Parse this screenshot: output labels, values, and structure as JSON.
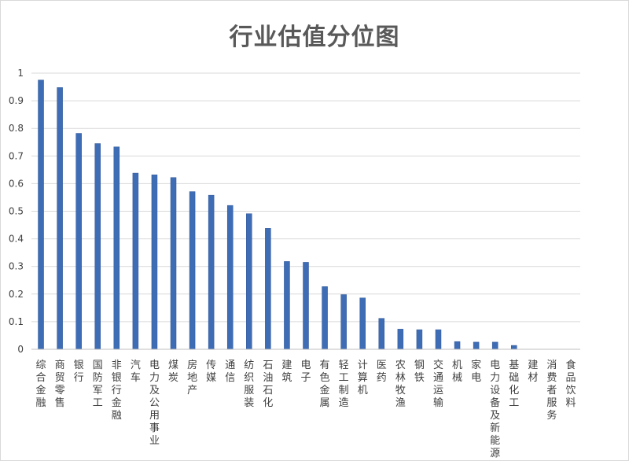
{
  "chart_data": {
    "type": "bar",
    "title": "行业估值分位图",
    "xlabel": "",
    "ylabel": "",
    "ylim": [
      0,
      1
    ],
    "yticks": [
      "0",
      "0.1",
      "0.2",
      "0.3",
      "0.4",
      "0.5",
      "0.6",
      "0.7",
      "0.8",
      "0.9",
      "1"
    ],
    "grid": true,
    "legend": "none",
    "bar_color": "#3e6db5",
    "categories": [
      "综合金融",
      "商贸零售",
      "银行",
      "国防军工",
      "非银行金融",
      "汽车",
      "电力及公用事业",
      "煤炭",
      "房地产",
      "传媒",
      "通信",
      "纺织服装",
      "石油石化",
      "建筑",
      "电子",
      "有色金属",
      "轻工制造",
      "计算机",
      "医药",
      "农林牧渔",
      "钢铁",
      "交通运输",
      "机械",
      "家电",
      "电力设备及新能源",
      "基础化工",
      "建材",
      "消费者服务",
      "食品饮料"
    ],
    "values": [
      0.975,
      0.948,
      0.782,
      0.745,
      0.733,
      0.638,
      0.632,
      0.622,
      0.571,
      0.558,
      0.521,
      0.491,
      0.438,
      0.318,
      0.315,
      0.227,
      0.198,
      0.186,
      0.112,
      0.073,
      0.071,
      0.071,
      0.028,
      0.026,
      0.026,
      0.014,
      0.0,
      0.0,
      0.0
    ]
  }
}
